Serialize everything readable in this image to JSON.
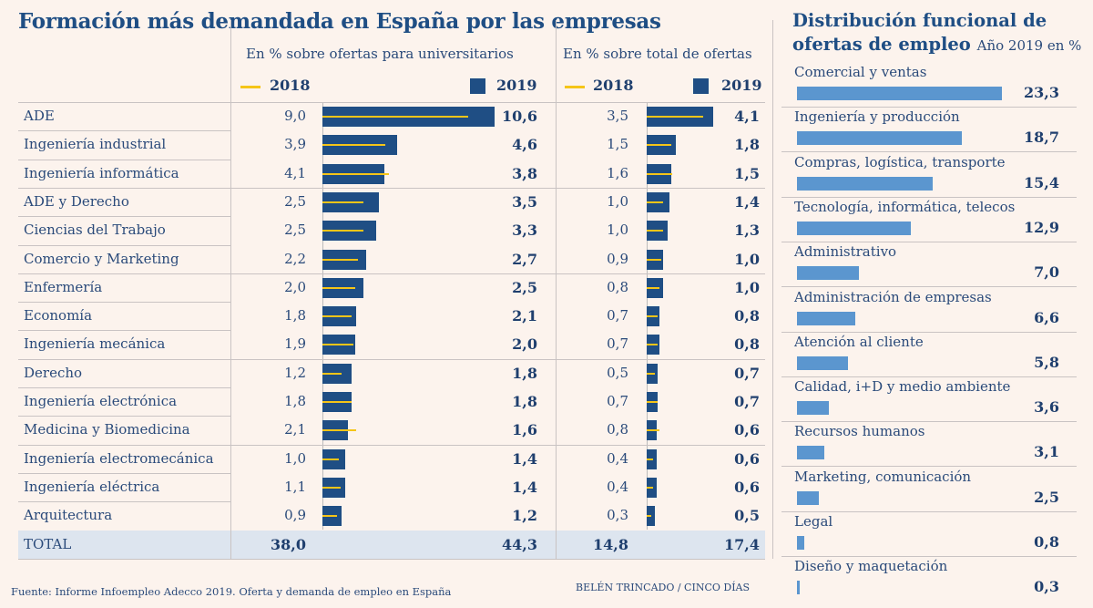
{
  "title": "Formación más demandada en España por las empresas",
  "chart_data": [
    {
      "type": "bar",
      "title": "Formación más demandada en España por las empresas",
      "columns": [
        {
          "subtitle": "En % sobre ofertas para universitarios",
          "key": "univ"
        },
        {
          "subtitle": "En % sobre total de ofertas",
          "key": "total"
        }
      ],
      "legend": {
        "y2018": "2018",
        "y2019": "2019"
      },
      "categories": [
        "ADE",
        "Ingeniería industrial",
        "Ingeniería informática",
        "ADE y Derecho",
        "Ciencias del Trabajo",
        "Comercio y Marketing",
        "Enfermería",
        "Economía",
        "Ingeniería mecánica",
        "Derecho",
        "Ingeniería electrónica",
        "Medicina y Biomedicina",
        "Ingeniería electromecánica",
        "Ingeniería eléctrica",
        "Arquitectura"
      ],
      "univ_2018": [
        "9,0",
        "3,9",
        "4,1",
        "2,5",
        "2,5",
        "2,2",
        "2,0",
        "1,8",
        "1,9",
        "1,2",
        "1,8",
        "2,1",
        "1,0",
        "1,1",
        "0,9"
      ],
      "univ_2019": [
        "10,6",
        "4,6",
        "3,8",
        "3,5",
        "3,3",
        "2,7",
        "2,5",
        "2,1",
        "2,0",
        "1,8",
        "1,8",
        "1,6",
        "1,4",
        "1,4",
        "1,2"
      ],
      "total_2018": [
        "3,5",
        "1,5",
        "1,6",
        "1,0",
        "1,0",
        "0,9",
        "0,8",
        "0,7",
        "0,7",
        "0,5",
        "0,7",
        "0,8",
        "0,4",
        "0,4",
        "0,3"
      ],
      "total_2019": [
        "4,1",
        "1,8",
        "1,5",
        "1,4",
        "1,3",
        "1,0",
        "1,0",
        "0,8",
        "0,8",
        "0,7",
        "0,7",
        "0,6",
        "0,6",
        "0,6",
        "0,5"
      ],
      "total_row": {
        "label": "TOTAL",
        "univ_2018": "38,0",
        "univ_2019": "44,3",
        "total_2018": "14,8",
        "total_2019": "17,4"
      },
      "colors": {
        "y2018": "#f5c518",
        "y2019": "#1f4e84"
      }
    },
    {
      "type": "bar",
      "title": "Distribución funcional de ofertas de empleo",
      "subtitle": "Año 2019 en %",
      "categories": [
        "Comercial y ventas",
        "Ingeniería y producción",
        "Compras, logística, transporte",
        "Tecnología, informática, telecos",
        "Administrativo",
        "Administración de empresas",
        "Atención al cliente",
        "Calidad, i+D y medio ambiente",
        "Recursos humanos",
        "Marketing, comunicación",
        "Legal",
        "Diseño y maquetación"
      ],
      "values": [
        "23,3",
        "18,7",
        "15,4",
        "12,9",
        "7,0",
        "6,6",
        "5,8",
        "3,6",
        "3,1",
        "2,5",
        "0,8",
        "0,3"
      ],
      "color": "#5b96cf"
    }
  ],
  "footer": {
    "source": "Fuente: Informe Infoempleo Adecco 2019. Oferta y demanda de empleo en España",
    "credit": "BELÉN TRINCADO / CINCO DÍAS"
  }
}
